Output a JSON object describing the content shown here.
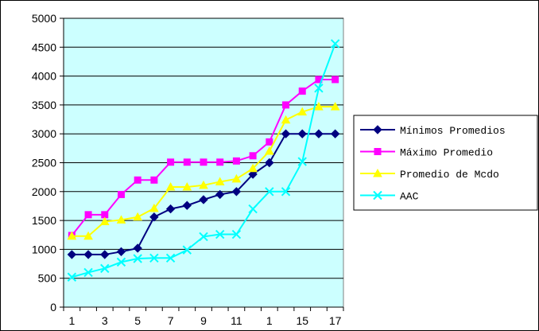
{
  "chart_data": {
    "type": "line",
    "title": "",
    "xlabel": "",
    "ylabel": "",
    "ylim": [
      0,
      5000
    ],
    "y_ticks": [
      0,
      500,
      1000,
      1500,
      2000,
      2500,
      3000,
      3500,
      4000,
      4500,
      5000
    ],
    "x_tick_labels": [
      "1",
      "3",
      "5",
      "7",
      "9",
      "11",
      "1",
      "15",
      "17"
    ],
    "grid": "horizontal",
    "plot_background": "#ccffff",
    "legend_position": "right",
    "series": [
      {
        "name": "Mínimos Promedios",
        "color": "#000080",
        "marker": "diamond",
        "values": [
          910,
          910,
          910,
          960,
          1020,
          1560,
          1700,
          1760,
          1860,
          1950,
          2000,
          2300,
          2500,
          3000,
          3000,
          3000,
          3000
        ]
      },
      {
        "name": "Máximo Promedio",
        "color": "#ff00ff",
        "marker": "square",
        "values": [
          1240,
          1600,
          1600,
          1950,
          2200,
          2200,
          2510,
          2510,
          2510,
          2510,
          2530,
          2620,
          2860,
          3500,
          3740,
          3940,
          3940
        ]
      },
      {
        "name": "Promedio de Mcdo",
        "color": "#ffff00",
        "marker": "triangle",
        "values": [
          1230,
          1230,
          1480,
          1510,
          1560,
          1710,
          2080,
          2080,
          2110,
          2170,
          2220,
          2400,
          2700,
          3240,
          3380,
          3470,
          3470
        ]
      },
      {
        "name": "AAC",
        "color": "#00ffff",
        "marker": "x",
        "values": [
          520,
          600,
          670,
          780,
          840,
          850,
          850,
          990,
          1220,
          1260,
          1260,
          1700,
          2000,
          2000,
          2520,
          3790,
          4560
        ]
      }
    ]
  }
}
